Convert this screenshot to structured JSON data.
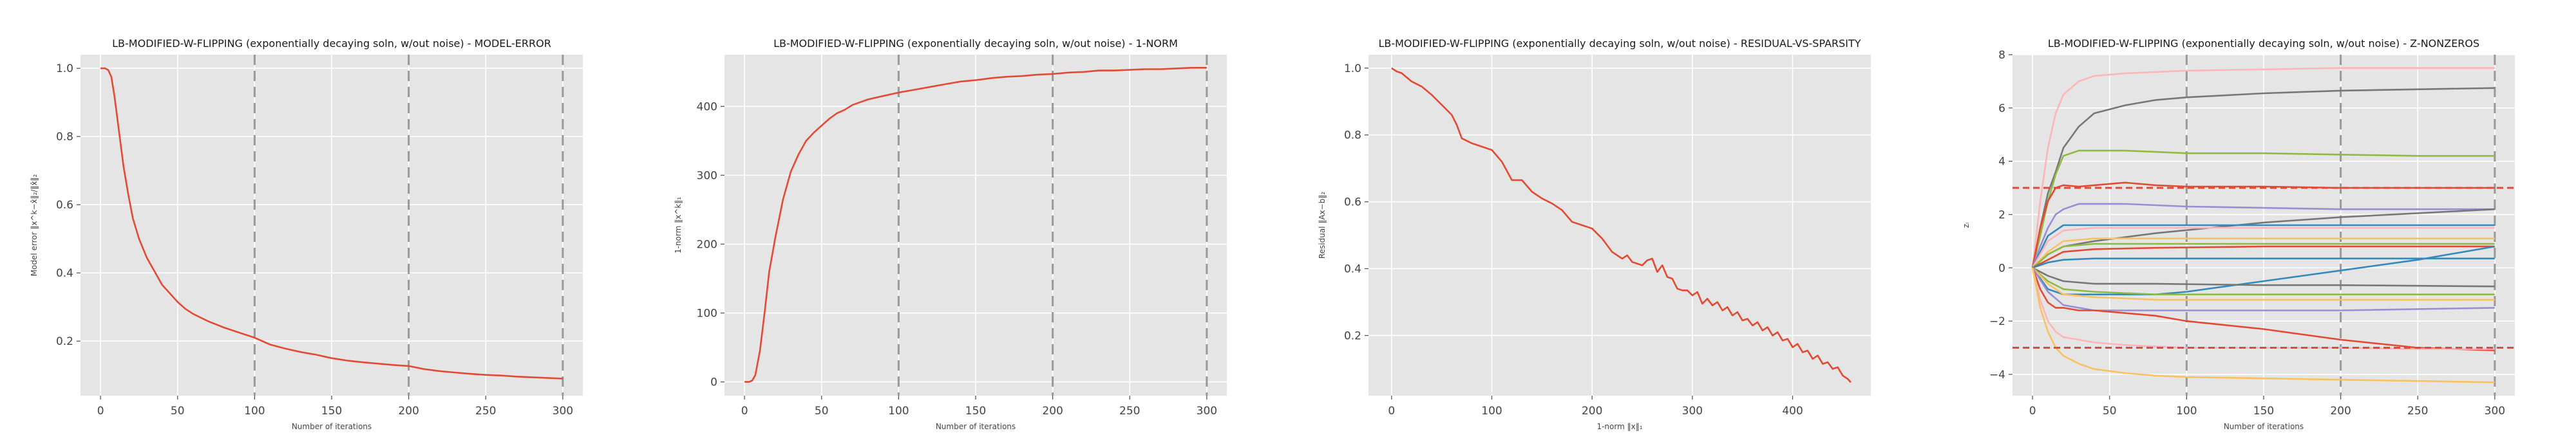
{
  "chart_data": [
    {
      "type": "line",
      "title": "LB-MODIFIED-W-FLIPPING (exponentially decaying soln, w/out noise) - MODEL-ERROR",
      "xlabel": "Number of iterations",
      "ylabel": "Model error ‖x^k−x̂‖₂/‖x̂‖₂",
      "xlim": [
        -13,
        313
      ],
      "ylim": [
        0.04,
        1.04
      ],
      "xticks": [
        0,
        50,
        100,
        150,
        200,
        250,
        300
      ],
      "yticks": [
        0.2,
        0.4,
        0.6,
        0.8,
        1.0
      ],
      "ytick_labels": [
        "0.2",
        "0.4",
        "0.6",
        "0.8",
        "1.0"
      ],
      "vlines": [
        100,
        200,
        300
      ],
      "grid": true,
      "series": [
        {
          "color": "#e24a33",
          "x": [
            0,
            3,
            5,
            7,
            9,
            11,
            13,
            15,
            18,
            21,
            25,
            30,
            35,
            40,
            45,
            50,
            55,
            60,
            70,
            80,
            90,
            100,
            110,
            120,
            130,
            140,
            150,
            160,
            170,
            180,
            190,
            200,
            210,
            220,
            230,
            240,
            250,
            260,
            270,
            280,
            290,
            300
          ],
          "y": [
            1.0,
            1.0,
            0.995,
            0.975,
            0.92,
            0.85,
            0.78,
            0.71,
            0.63,
            0.56,
            0.5,
            0.445,
            0.405,
            0.365,
            0.34,
            0.315,
            0.295,
            0.28,
            0.258,
            0.24,
            0.225,
            0.21,
            0.19,
            0.178,
            0.168,
            0.16,
            0.15,
            0.143,
            0.138,
            0.134,
            0.13,
            0.127,
            0.118,
            0.112,
            0.108,
            0.104,
            0.101,
            0.099,
            0.096,
            0.094,
            0.092,
            0.09
          ]
        }
      ]
    },
    {
      "type": "line",
      "title": "LB-MODIFIED-W-FLIPPING (exponentially decaying soln, w/out noise) - 1-NORM",
      "xlabel": "Number of iterations",
      "ylabel": "1-norm ‖x^k‖₁",
      "xlim": [
        -13,
        313
      ],
      "ylim": [
        -20,
        475
      ],
      "xticks": [
        0,
        50,
        100,
        150,
        200,
        250,
        300
      ],
      "yticks": [
        0,
        100,
        200,
        300,
        400
      ],
      "ytick_labels": [
        "0",
        "100",
        "200",
        "300",
        "400"
      ],
      "vlines": [
        100,
        200,
        300
      ],
      "grid": true,
      "series": [
        {
          "color": "#e24a33",
          "x": [
            0,
            3,
            5,
            7,
            10,
            13,
            16,
            20,
            25,
            30,
            35,
            40,
            45,
            50,
            55,
            60,
            65,
            70,
            80,
            90,
            100,
            110,
            120,
            130,
            140,
            150,
            160,
            170,
            180,
            190,
            200,
            210,
            220,
            230,
            240,
            250,
            260,
            270,
            280,
            290,
            300
          ],
          "y": [
            0,
            0,
            2,
            10,
            45,
            100,
            160,
            210,
            265,
            305,
            330,
            350,
            362,
            372,
            382,
            390,
            395,
            402,
            410,
            415,
            420,
            424,
            428,
            432,
            436,
            438,
            441,
            443,
            444,
            446,
            447,
            449,
            450,
            452,
            452,
            453,
            454,
            454,
            455,
            456,
            456
          ]
        }
      ]
    },
    {
      "type": "line",
      "title": "LB-MODIFIED-W-FLIPPING (exponentially decaying soln, w/out noise) - RESIDUAL-VS-SPARSITY",
      "xlabel": "1-norm ‖x‖₁",
      "ylabel": "Residual ‖Ax−b‖₂",
      "xlim": [
        -23,
        478
      ],
      "ylim": [
        0.02,
        1.04
      ],
      "xticks": [
        0,
        100,
        200,
        300,
        400
      ],
      "yticks": [
        0.2,
        0.4,
        0.6,
        0.8,
        1.0
      ],
      "ytick_labels": [
        "0.2",
        "0.4",
        "0.6",
        "0.8",
        "1.0"
      ],
      "vlines": [],
      "grid": true,
      "series": [
        {
          "color": "#e24a33",
          "x": [
            0,
            5,
            10,
            20,
            30,
            40,
            50,
            60,
            65,
            70,
            80,
            90,
            100,
            110,
            120,
            130,
            140,
            150,
            160,
            170,
            180,
            190,
            200,
            210,
            220,
            230,
            235,
            240,
            250,
            255,
            260,
            265,
            270,
            275,
            280,
            285,
            290,
            295,
            300,
            305,
            310,
            315,
            320,
            325,
            330,
            335,
            340,
            345,
            350,
            355,
            360,
            365,
            370,
            375,
            380,
            385,
            390,
            395,
            400,
            405,
            410,
            415,
            420,
            425,
            430,
            435,
            440,
            445,
            450,
            455,
            458
          ],
          "y": [
            1.0,
            0.99,
            0.985,
            0.96,
            0.945,
            0.92,
            0.89,
            0.86,
            0.83,
            0.79,
            0.775,
            0.765,
            0.755,
            0.72,
            0.665,
            0.665,
            0.63,
            0.61,
            0.595,
            0.575,
            0.54,
            0.53,
            0.52,
            0.49,
            0.45,
            0.43,
            0.44,
            0.42,
            0.41,
            0.425,
            0.43,
            0.39,
            0.41,
            0.375,
            0.37,
            0.34,
            0.335,
            0.335,
            0.32,
            0.33,
            0.295,
            0.31,
            0.29,
            0.3,
            0.275,
            0.285,
            0.26,
            0.27,
            0.245,
            0.25,
            0.23,
            0.24,
            0.215,
            0.225,
            0.2,
            0.21,
            0.185,
            0.19,
            0.165,
            0.175,
            0.15,
            0.155,
            0.13,
            0.14,
            0.115,
            0.12,
            0.1,
            0.105,
            0.08,
            0.07,
            0.06
          ]
        }
      ]
    },
    {
      "type": "line",
      "title": "LB-MODIFIED-W-FLIPPING (exponentially decaying soln, w/out noise) - Z-NONZEROS",
      "xlabel": "Number of iterations",
      "ylabel": "zᵢ",
      "xlim": [
        -13,
        313
      ],
      "ylim": [
        -4.8,
        8.0
      ],
      "xticks": [
        0,
        50,
        100,
        150,
        200,
        250,
        300
      ],
      "yticks": [
        -4,
        -2,
        0,
        2,
        4,
        6,
        8
      ],
      "ytick_labels": [
        "−4",
        "−2",
        "0",
        "2",
        "4",
        "6",
        "8"
      ],
      "vlines": [
        100,
        200,
        300
      ],
      "hlines": [
        3.0,
        -3.0
      ],
      "hline_color": "#e24a33",
      "grid": true,
      "series": [
        {
          "color": "#ffb5b8",
          "x": [
            0,
            5,
            10,
            15,
            20,
            30,
            40,
            60,
            80,
            100,
            150,
            200,
            250,
            300
          ],
          "y": [
            0,
            2.5,
            4.5,
            5.8,
            6.5,
            7.0,
            7.2,
            7.3,
            7.35,
            7.4,
            7.45,
            7.5,
            7.5,
            7.5
          ]
        },
        {
          "color": "#777777",
          "x": [
            0,
            5,
            10,
            15,
            20,
            30,
            40,
            60,
            80,
            100,
            150,
            200,
            250,
            300
          ],
          "y": [
            0,
            1.5,
            2.8,
            3.6,
            4.5,
            5.3,
            5.8,
            6.1,
            6.3,
            6.4,
            6.55,
            6.65,
            6.7,
            6.75
          ]
        },
        {
          "color": "#8eba42",
          "x": [
            0,
            5,
            10,
            15,
            20,
            30,
            40,
            60,
            80,
            100,
            150,
            200,
            250,
            300
          ],
          "y": [
            0,
            1.2,
            2.5,
            3.5,
            4.2,
            4.4,
            4.4,
            4.4,
            4.35,
            4.3,
            4.3,
            4.25,
            4.2,
            4.2
          ]
        },
        {
          "color": "#e24a33",
          "x": [
            0,
            5,
            10,
            15,
            20,
            30,
            40,
            60,
            80,
            100,
            150,
            200,
            250,
            300
          ],
          "y": [
            0,
            1.5,
            2.5,
            3.0,
            3.1,
            3.05,
            3.1,
            3.2,
            3.1,
            3.05,
            3.05,
            3.0,
            3.0,
            3.0
          ]
        },
        {
          "color": "#988ed5",
          "x": [
            0,
            5,
            10,
            15,
            20,
            30,
            60,
            100,
            150,
            200,
            250,
            300
          ],
          "y": [
            0,
            0.8,
            1.5,
            2.0,
            2.2,
            2.4,
            2.4,
            2.3,
            2.25,
            2.2,
            2.2,
            2.2
          ]
        },
        {
          "color": "#777777",
          "x": [
            0,
            10,
            20,
            40,
            80,
            150,
            200,
            300
          ],
          "y": [
            0,
            0.5,
            0.8,
            1.0,
            1.3,
            1.7,
            1.9,
            2.2
          ]
        },
        {
          "color": "#348abd",
          "x": [
            0,
            10,
            20,
            40,
            80,
            150,
            200,
            300
          ],
          "y": [
            0,
            1.2,
            1.6,
            1.6,
            1.6,
            1.6,
            1.6,
            1.6
          ]
        },
        {
          "color": "#ffb5b8",
          "x": [
            0,
            10,
            20,
            40,
            80,
            150,
            200,
            300
          ],
          "y": [
            0,
            1.0,
            1.4,
            1.5,
            1.5,
            1.5,
            1.5,
            1.5
          ]
        },
        {
          "color": "#fbc15e",
          "x": [
            0,
            10,
            20,
            40,
            80,
            150,
            200,
            300
          ],
          "y": [
            0,
            0.6,
            1.0,
            1.1,
            1.1,
            1.1,
            1.1,
            1.1
          ]
        },
        {
          "color": "#8eba42",
          "x": [
            0,
            10,
            20,
            40,
            80,
            150,
            200,
            300
          ],
          "y": [
            0,
            0.5,
            0.8,
            0.9,
            0.9,
            0.9,
            0.9,
            0.9
          ]
        },
        {
          "color": "#e24a33",
          "x": [
            0,
            10,
            20,
            40,
            80,
            150,
            200,
            300
          ],
          "y": [
            0,
            0.3,
            0.6,
            0.7,
            0.75,
            0.8,
            0.8,
            0.8
          ]
        },
        {
          "color": "#348abd",
          "x": [
            0,
            10,
            20,
            40,
            80,
            150,
            200,
            300
          ],
          "y": [
            0,
            0.2,
            0.3,
            0.35,
            0.35,
            0.35,
            0.35,
            0.35
          ]
        },
        {
          "color": "#348abd",
          "x": [
            0,
            10,
            20,
            40,
            80,
            100,
            150,
            200,
            250,
            300
          ],
          "y": [
            0,
            -0.8,
            -1.0,
            -1.0,
            -1.0,
            -0.9,
            -0.5,
            -0.1,
            0.3,
            0.8
          ]
        },
        {
          "color": "#777777",
          "x": [
            0,
            10,
            20,
            40,
            80,
            150,
            200,
            300
          ],
          "y": [
            0,
            -0.3,
            -0.5,
            -0.6,
            -0.6,
            -0.65,
            -0.65,
            -0.7
          ]
        },
        {
          "color": "#8eba42",
          "x": [
            0,
            10,
            20,
            40,
            80,
            150,
            200,
            300
          ],
          "y": [
            0,
            -0.5,
            -0.8,
            -0.9,
            -1.0,
            -1.0,
            -1.0,
            -1.0
          ]
        },
        {
          "color": "#fbc15e",
          "x": [
            0,
            10,
            20,
            40,
            80,
            150,
            200,
            300
          ],
          "y": [
            0,
            -0.6,
            -1.0,
            -1.1,
            -1.2,
            -1.2,
            -1.2,
            -1.2
          ]
        },
        {
          "color": "#988ed5",
          "x": [
            0,
            10,
            20,
            40,
            80,
            150,
            200,
            300
          ],
          "y": [
            0,
            -0.9,
            -1.4,
            -1.6,
            -1.6,
            -1.6,
            -1.6,
            -1.5
          ]
        },
        {
          "color": "#e24a33",
          "x": [
            0,
            5,
            10,
            15,
            20,
            30,
            40,
            60,
            80,
            100,
            150,
            200,
            250,
            300
          ],
          "y": [
            0,
            -0.8,
            -1.3,
            -1.5,
            -1.5,
            -1.6,
            -1.6,
            -1.7,
            -1.8,
            -2.0,
            -2.3,
            -2.7,
            -3.0,
            -3.1
          ]
        },
        {
          "color": "#ffb5b8",
          "x": [
            0,
            5,
            10,
            15,
            20,
            30,
            40,
            60,
            80,
            100,
            150,
            200,
            250,
            300
          ],
          "y": [
            0,
            -1.2,
            -2.0,
            -2.4,
            -2.6,
            -2.7,
            -2.8,
            -2.9,
            -2.95,
            -3.0,
            -3.0,
            -3.0,
            -3.05,
            -3.05
          ]
        },
        {
          "color": "#fbc15e",
          "x": [
            0,
            5,
            10,
            15,
            20,
            30,
            40,
            60,
            80,
            100,
            150,
            200,
            250,
            300
          ],
          "y": [
            0,
            -1.5,
            -2.4,
            -3.0,
            -3.3,
            -3.6,
            -3.8,
            -3.95,
            -4.05,
            -4.1,
            -4.15,
            -4.2,
            -4.25,
            -4.3
          ]
        }
      ]
    }
  ]
}
